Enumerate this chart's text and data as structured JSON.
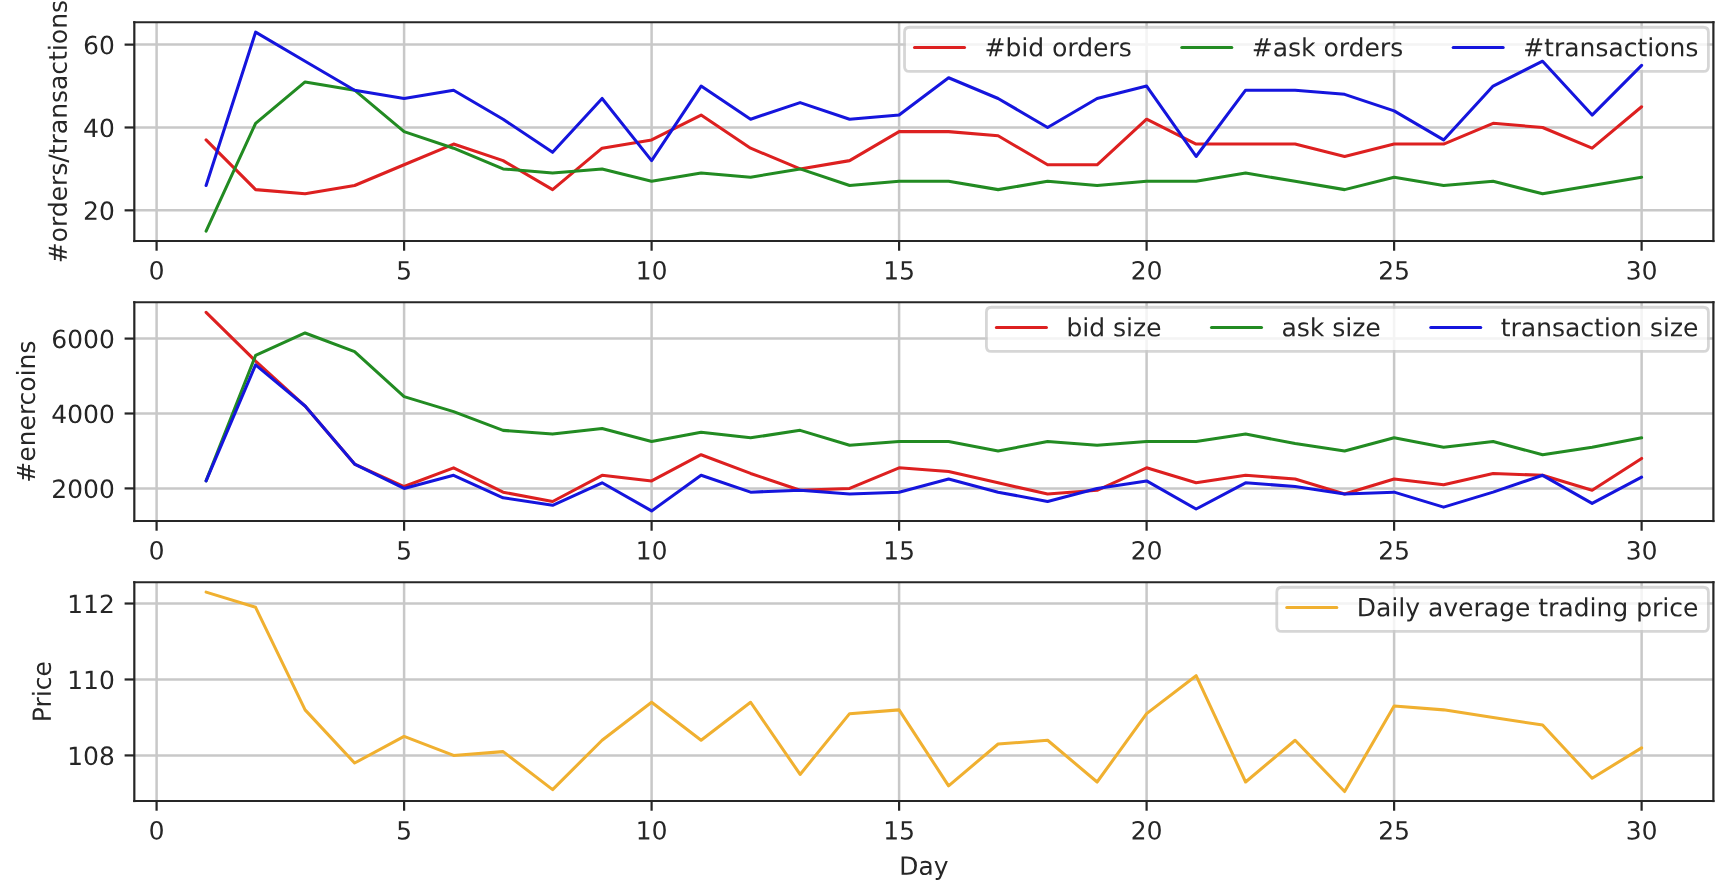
{
  "chart_data": [
    {
      "type": "line",
      "ylabel": "#orders/transactions",
      "x": [
        1,
        2,
        3,
        4,
        5,
        6,
        7,
        8,
        9,
        10,
        11,
        12,
        13,
        14,
        15,
        16,
        17,
        18,
        19,
        20,
        21,
        22,
        23,
        24,
        25,
        26,
        27,
        28,
        29,
        30
      ],
      "xlim": [
        -0.45,
        31.45
      ],
      "xticks": [
        0,
        5,
        10,
        15,
        20,
        25,
        30
      ],
      "ylim": [
        12.6,
        65.4
      ],
      "yticks": [
        20,
        40,
        60
      ],
      "grid": true,
      "legend": "top right",
      "series": [
        {
          "name": "#bid orders",
          "color": "#dd2020",
          "values": [
            37,
            25,
            24,
            26,
            31,
            36,
            32,
            25,
            35,
            37,
            43,
            35,
            30,
            32,
            39,
            39,
            38,
            31,
            31,
            42,
            36,
            36,
            36,
            33,
            36,
            36,
            41,
            40,
            35,
            45
          ]
        },
        {
          "name": "#ask orders",
          "color": "#228b22",
          "values": [
            15,
            41,
            51,
            49,
            39,
            35,
            30,
            29,
            30,
            27,
            29,
            28,
            30,
            26,
            27,
            27,
            25,
            27,
            26,
            27,
            27,
            29,
            27,
            25,
            28,
            26,
            27,
            24,
            26,
            28
          ]
        },
        {
          "name": "#transactions",
          "color": "#1515dd",
          "values": [
            26,
            63,
            56,
            49,
            47,
            49,
            42,
            34,
            47,
            32,
            50,
            42,
            46,
            42,
            43,
            52,
            47,
            40,
            47,
            50,
            33,
            49,
            49,
            48,
            44,
            37,
            50,
            56,
            43,
            55
          ]
        }
      ]
    },
    {
      "type": "line",
      "ylabel": "#enercoins",
      "x": [
        1,
        2,
        3,
        4,
        5,
        6,
        7,
        8,
        9,
        10,
        11,
        12,
        13,
        14,
        15,
        16,
        17,
        18,
        19,
        20,
        21,
        22,
        23,
        24,
        25,
        26,
        27,
        28,
        29,
        30
      ],
      "xlim": [
        -0.45,
        31.45
      ],
      "xticks": [
        0,
        5,
        10,
        15,
        20,
        25,
        30
      ],
      "ylim": [
        1130,
        6970
      ],
      "yticks": [
        2000,
        4000,
        6000
      ],
      "grid": true,
      "legend": "top right",
      "series": [
        {
          "name": "bid size",
          "color": "#dd2020",
          "values": [
            6700,
            5400,
            4200,
            2650,
            2050,
            2550,
            1900,
            1650,
            2350,
            2200,
            2900,
            2400,
            1950,
            2000,
            2550,
            2450,
            2150,
            1850,
            1950,
            2550,
            2150,
            2350,
            2250,
            1850,
            2250,
            2100,
            2400,
            2350,
            1950,
            2800
          ]
        },
        {
          "name": "ask size",
          "color": "#228b22",
          "values": [
            2200,
            5550,
            6150,
            5650,
            4450,
            4050,
            3550,
            3450,
            3600,
            3250,
            3500,
            3350,
            3550,
            3150,
            3250,
            3250,
            3000,
            3250,
            3150,
            3250,
            3250,
            3450,
            3200,
            3000,
            3350,
            3100,
            3250,
            2900,
            3100,
            3350
          ]
        },
        {
          "name": "transaction size",
          "color": "#1515dd",
          "values": [
            2200,
            5300,
            4200,
            2650,
            2000,
            2350,
            1750,
            1550,
            2150,
            1400,
            2350,
            1900,
            1950,
            1850,
            1900,
            2250,
            1900,
            1650,
            2000,
            2200,
            1450,
            2150,
            2050,
            1850,
            1900,
            1500,
            1900,
            2350,
            1600,
            2300
          ]
        }
      ]
    },
    {
      "type": "line",
      "xlabel": "Day",
      "ylabel": "Price",
      "x": [
        1,
        2,
        3,
        4,
        5,
        6,
        7,
        8,
        9,
        10,
        11,
        12,
        13,
        14,
        15,
        16,
        17,
        18,
        19,
        20,
        21,
        22,
        23,
        24,
        25,
        26,
        27,
        28,
        29,
        30
      ],
      "xlim": [
        -0.45,
        31.45
      ],
      "xticks": [
        0,
        5,
        10,
        15,
        20,
        25,
        30
      ],
      "ylim": [
        106.8,
        112.56
      ],
      "yticks": [
        108,
        110,
        112
      ],
      "grid": true,
      "legend": "top right",
      "series": [
        {
          "name": "Daily average trading price",
          "color": "#f0b030",
          "values": [
            112.3,
            111.9,
            109.2,
            107.8,
            108.5,
            108.0,
            108.1,
            107.1,
            108.4,
            109.4,
            108.4,
            109.4,
            107.5,
            109.1,
            109.2,
            107.2,
            108.3,
            108.4,
            107.3,
            109.1,
            110.1,
            107.3,
            108.4,
            107.05,
            109.3,
            109.2,
            109.0,
            108.8,
            107.4,
            108.2
          ]
        }
      ]
    }
  ]
}
